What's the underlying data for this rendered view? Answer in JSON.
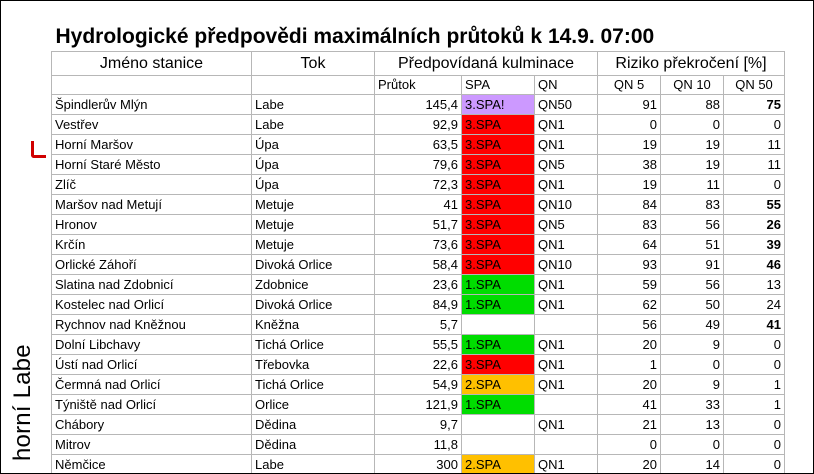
{
  "title": "Hydrologické předpovědi maximálních průtoků k 14.9. 07:00",
  "side_label": "horní Labe",
  "headers": {
    "station": "Jméno stanice",
    "river": "Tok",
    "forecast": "Předpovídaná kulminace",
    "risk": "Riziko překročení [%]",
    "flow": "Průtok",
    "spa": "SPA",
    "qn": "QN",
    "qn5": "QN 5",
    "qn10": "QN 10",
    "qn50": "QN 50"
  },
  "colors": {
    "spa_purple": "#cc99ff",
    "spa_red": "#ff0000",
    "spa_green": "#00dd00",
    "spa_orange": "#ffc000",
    "marker": "#d00000"
  },
  "rows": [
    {
      "name": "Špindlerův Mlýn",
      "river": "Labe",
      "flow": "145,4",
      "spa": "3.SPA!",
      "spa_color": "purple",
      "qn": "QN50",
      "qn5": "91",
      "qn10": "88",
      "qn50": "75",
      "qn50_bold": true
    },
    {
      "name": "Vestřev",
      "river": "Labe",
      "flow": "92,9",
      "spa": "3.SPA",
      "spa_color": "red",
      "qn": "QN1",
      "qn5": "0",
      "qn10": "0",
      "qn50": "0",
      "qn50_bold": false
    },
    {
      "name": "Horní Maršov",
      "river": "Úpa",
      "flow": "63,5",
      "spa": "3.SPA",
      "spa_color": "red",
      "qn": "QN1",
      "qn5": "19",
      "qn10": "19",
      "qn50": "11",
      "qn50_bold": false
    },
    {
      "name": "Horní Staré Město",
      "river": "Úpa",
      "flow": "79,6",
      "spa": "3.SPA",
      "spa_color": "red",
      "qn": "QN5",
      "qn5": "38",
      "qn10": "19",
      "qn50": "11",
      "qn50_bold": false
    },
    {
      "name": "Zlíč",
      "river": "Úpa",
      "flow": "72,3",
      "spa": "3.SPA",
      "spa_color": "red",
      "qn": "QN1",
      "qn5": "19",
      "qn10": "11",
      "qn50": "0",
      "qn50_bold": false
    },
    {
      "name": "Maršov nad Metují",
      "river": "Metuje",
      "flow": "41",
      "spa": "3.SPA",
      "spa_color": "red",
      "qn": "QN10",
      "qn5": "84",
      "qn10": "83",
      "qn50": "55",
      "qn50_bold": true
    },
    {
      "name": "Hronov",
      "river": "Metuje",
      "flow": "51,7",
      "spa": "3.SPA",
      "spa_color": "red",
      "qn": "QN5",
      "qn5": "83",
      "qn10": "56",
      "qn50": "26",
      "qn50_bold": true
    },
    {
      "name": "Krčín",
      "river": "Metuje",
      "flow": "73,6",
      "spa": "3.SPA",
      "spa_color": "red",
      "qn": "QN1",
      "qn5": "64",
      "qn10": "51",
      "qn50": "39",
      "qn50_bold": true
    },
    {
      "name": "Orlické Záhoří",
      "river": "Divoká Orlice",
      "flow": "58,4",
      "spa": "3.SPA",
      "spa_color": "red",
      "qn": "QN10",
      "qn5": "93",
      "qn10": "91",
      "qn50": "46",
      "qn50_bold": true
    },
    {
      "name": "Slatina nad Zdobnicí",
      "river": "Zdobnice",
      "flow": "23,6",
      "spa": "1.SPA",
      "spa_color": "green",
      "qn": "QN1",
      "qn5": "59",
      "qn10": "56",
      "qn50": "13",
      "qn50_bold": false
    },
    {
      "name": "Kostelec nad Orlicí",
      "river": "Divoká Orlice",
      "flow": "84,9",
      "spa": "1.SPA",
      "spa_color": "green",
      "qn": "QN1",
      "qn5": "62",
      "qn10": "50",
      "qn50": "24",
      "qn50_bold": false
    },
    {
      "name": "Rychnov nad Kněžnou",
      "river": "Kněžna",
      "flow": "5,7",
      "spa": "",
      "spa_color": "none",
      "qn": "",
      "qn5": "56",
      "qn10": "49",
      "qn50": "41",
      "qn50_bold": true
    },
    {
      "name": "Dolní Libchavy",
      "river": "Tichá Orlice",
      "flow": "55,5",
      "spa": "1.SPA",
      "spa_color": "green",
      "qn": "QN1",
      "qn5": "20",
      "qn10": "9",
      "qn50": "0",
      "qn50_bold": false
    },
    {
      "name": "Ústí nad Orlicí",
      "river": "Třebovka",
      "flow": "22,6",
      "spa": "3.SPA",
      "spa_color": "red",
      "qn": "QN1",
      "qn5": "1",
      "qn10": "0",
      "qn50": "0",
      "qn50_bold": false
    },
    {
      "name": "Čermná nad Orlicí",
      "river": "Tichá Orlice",
      "flow": "54,9",
      "spa": "2.SPA",
      "spa_color": "orange",
      "qn": "QN1",
      "qn5": "20",
      "qn10": "9",
      "qn50": "1",
      "qn50_bold": false
    },
    {
      "name": "Týniště nad Orlicí",
      "river": "Orlice",
      "flow": "121,9",
      "spa": "1.SPA",
      "spa_color": "green",
      "qn": "",
      "qn5": "41",
      "qn10": "33",
      "qn50": "1",
      "qn50_bold": false
    },
    {
      "name": "Chábory",
      "river": "Dědina",
      "flow": "9,7",
      "spa": "",
      "spa_color": "none",
      "qn": "QN1",
      "qn5": "21",
      "qn10": "13",
      "qn50": "0",
      "qn50_bold": false
    },
    {
      "name": "Mitrov",
      "river": "Dědina",
      "flow": "11,8",
      "spa": "",
      "spa_color": "none",
      "qn": "",
      "qn5": "0",
      "qn10": "0",
      "qn50": "0",
      "qn50_bold": false
    },
    {
      "name": "Němčice",
      "river": "Labe",
      "flow": "300",
      "spa": "2.SPA",
      "spa_color": "orange",
      "qn": "QN1",
      "qn5": "20",
      "qn10": "14",
      "qn50": "0",
      "qn50_bold": false
    }
  ]
}
